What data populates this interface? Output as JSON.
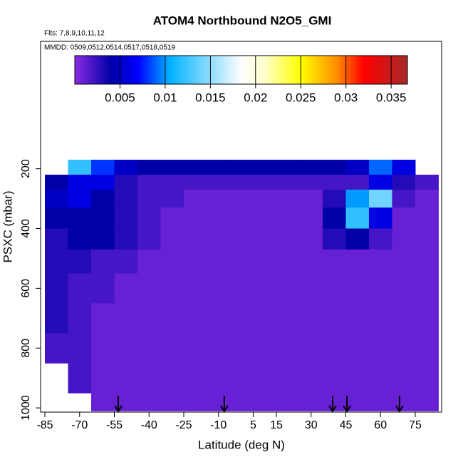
{
  "chart_data": {
    "type": "heatmap",
    "title": "ATOM4 Northbound N2O5_GMI",
    "subtitle": "Flts: 7,8,9,10,11,12",
    "annotation": "MMDD: 0509,0512,0514,0517,0518,0519",
    "x_label": "Latitude (deg N)",
    "y_label": "PSXC (mbar)",
    "xlim": [
      -86.85,
      86.4
    ],
    "xticks": [
      -85,
      -70,
      -55,
      -40,
      -25,
      -10,
      5,
      15,
      30,
      45,
      60,
      75
    ],
    "ylim": [
      1014,
      -226
    ],
    "yticks": [
      200,
      400,
      600,
      800,
      1000
    ],
    "x_edges": [
      -85,
      -75,
      -65,
      -55,
      -45,
      -35,
      -25,
      -15,
      -5,
      5,
      15,
      25,
      35,
      45,
      55,
      65,
      75,
      85
    ],
    "y_edges": [
      170,
      220,
      270,
      330,
      400,
      470,
      550,
      650,
      750,
      850,
      950,
      1010
    ],
    "z": [
      [
        null,
        0.012,
        0.008,
        0.005,
        0.004,
        0.004,
        0.004,
        0.004,
        0.004,
        0.004,
        0.004,
        0.004,
        0.004,
        0.005,
        0.009,
        0.006,
        null
      ],
      [
        0.004,
        0.006,
        0.006,
        0.003,
        0.002,
        0.002,
        0.002,
        0.002,
        0.002,
        0.002,
        0.002,
        0.002,
        0.002,
        0.002,
        0.006,
        0.003,
        0.002
      ],
      [
        0.005,
        0.006,
        0.004,
        0.003,
        0.002,
        0.002,
        0.001,
        0.001,
        0.001,
        0.001,
        0.001,
        0.001,
        0.003,
        0.01,
        0.014,
        0.002,
        0.001
      ],
      [
        0.004,
        0.004,
        0.004,
        0.003,
        0.002,
        0.001,
        0.001,
        0.001,
        0.001,
        0.001,
        0.001,
        0.001,
        0.004,
        0.012,
        0.006,
        0.001,
        0.001
      ],
      [
        0.003,
        0.004,
        0.004,
        0.003,
        0.002,
        0.001,
        0.001,
        0.001,
        0.001,
        0.001,
        0.001,
        0.001,
        0.003,
        0.004,
        0.002,
        0.001,
        0.001
      ],
      [
        0.003,
        0.003,
        0.002,
        0.002,
        0.001,
        0.001,
        0.001,
        0.001,
        0.001,
        0.001,
        0.001,
        0.001,
        0.001,
        0.001,
        0.001,
        0.001,
        0.001
      ],
      [
        0.003,
        0.002,
        0.002,
        0.001,
        0.001,
        0.001,
        0.001,
        0.001,
        0.001,
        0.001,
        0.001,
        0.001,
        0.001,
        0.001,
        0.001,
        0.001,
        0.001
      ],
      [
        0.003,
        0.002,
        0.001,
        0.001,
        0.001,
        0.001,
        0.001,
        0.001,
        0.001,
        0.001,
        0.001,
        0.001,
        0.001,
        0.001,
        0.001,
        0.001,
        0.001
      ],
      [
        0.002,
        0.002,
        0.001,
        0.001,
        0.001,
        0.001,
        0.001,
        0.001,
        0.001,
        0.001,
        0.001,
        0.001,
        0.001,
        0.001,
        0.001,
        0.001,
        0.001
      ],
      [
        null,
        0.002,
        0.001,
        0.001,
        0.001,
        0.001,
        0.001,
        0.001,
        0.001,
        0.001,
        0.001,
        0.001,
        0.001,
        0.001,
        0.001,
        0.001,
        0.001
      ],
      [
        null,
        null,
        0.001,
        0.001,
        0.001,
        0.001,
        0.001,
        0.001,
        0.001,
        0.001,
        0.001,
        0.001,
        0.001,
        0.001,
        0.001,
        0.001,
        0.001
      ]
    ],
    "markers": [
      -53.3,
      -7.5,
      39.3,
      45.5,
      68.2
    ],
    "colorbar": {
      "lim": [
        0,
        0.0368
      ],
      "ticks": [
        0.005,
        0.01,
        0.015,
        0.02,
        0.025,
        0.03,
        0.035
      ],
      "stops": [
        0,
        0.004,
        0.007,
        0.0105,
        0.0185,
        0.021,
        0.025,
        0.029,
        0.032,
        0.0368
      ],
      "colors": [
        "#8a2be2",
        "#0000a8",
        "#0000ff",
        "#00b2ff",
        "#ffffff",
        "#ffffcc",
        "#ffff00",
        "#ff8c00",
        "#ff0000",
        "#a52a2a"
      ]
    }
  }
}
